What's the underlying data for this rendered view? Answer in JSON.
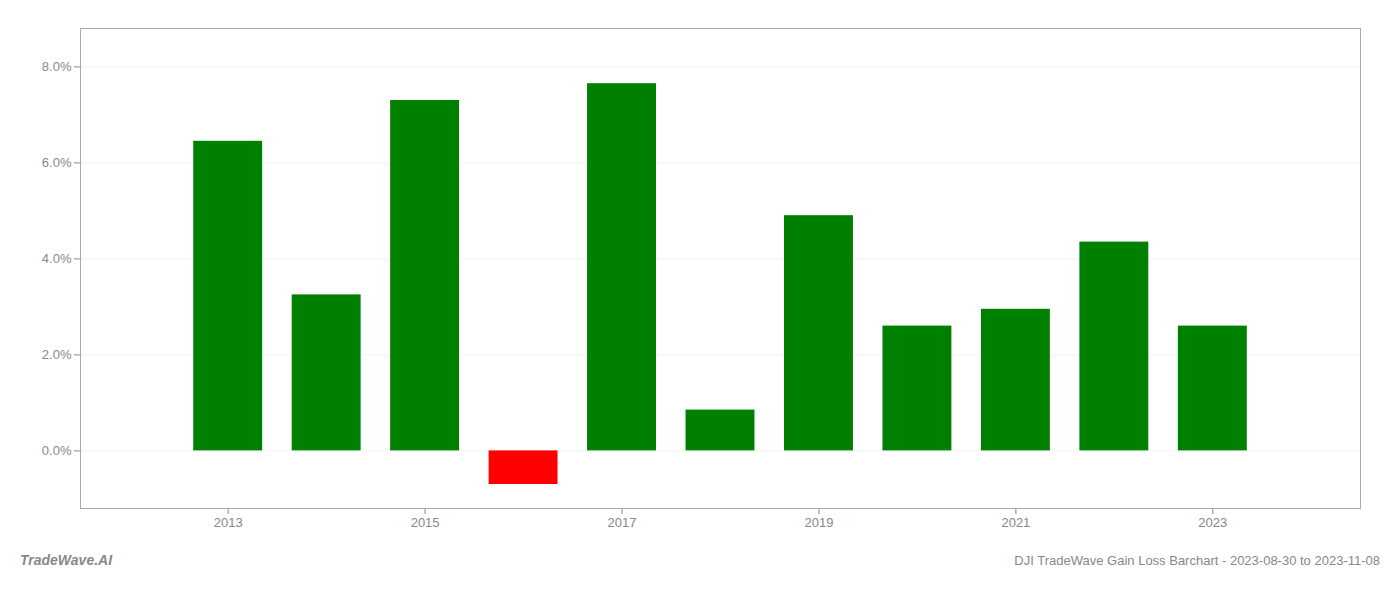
{
  "chart_data": {
    "type": "bar",
    "x": [
      2013,
      2014,
      2015,
      2016,
      2017,
      2018,
      2019,
      2020,
      2021,
      2022,
      2023
    ],
    "values": [
      0.0645,
      0.0325,
      0.073,
      -0.007,
      0.0765,
      0.0085,
      0.049,
      0.026,
      0.0295,
      0.0435,
      0.026
    ],
    "colors": [
      "#008000",
      "#008000",
      "#008000",
      "#ff0000",
      "#008000",
      "#008000",
      "#008000",
      "#008000",
      "#008000",
      "#008000",
      "#008000"
    ],
    "xlim": [
      2011.5,
      2024.5
    ],
    "xticks": [
      2013,
      2015,
      2017,
      2019,
      2021,
      2023
    ],
    "ylim": [
      -0.012,
      0.088
    ],
    "yticks": [
      {
        "value": 0.0,
        "label": "0.0%"
      },
      {
        "value": 0.02,
        "label": "2.0%"
      },
      {
        "value": 0.04,
        "label": "4.0%"
      },
      {
        "value": 0.06,
        "label": "6.0%"
      },
      {
        "value": 0.08,
        "label": "8.0%"
      }
    ],
    "grid": true,
    "annotations": [
      "TradeWave.AI",
      "DJI TradeWave Gain Loss Barchart - 2023-08-30 to 2023-11-08"
    ]
  }
}
